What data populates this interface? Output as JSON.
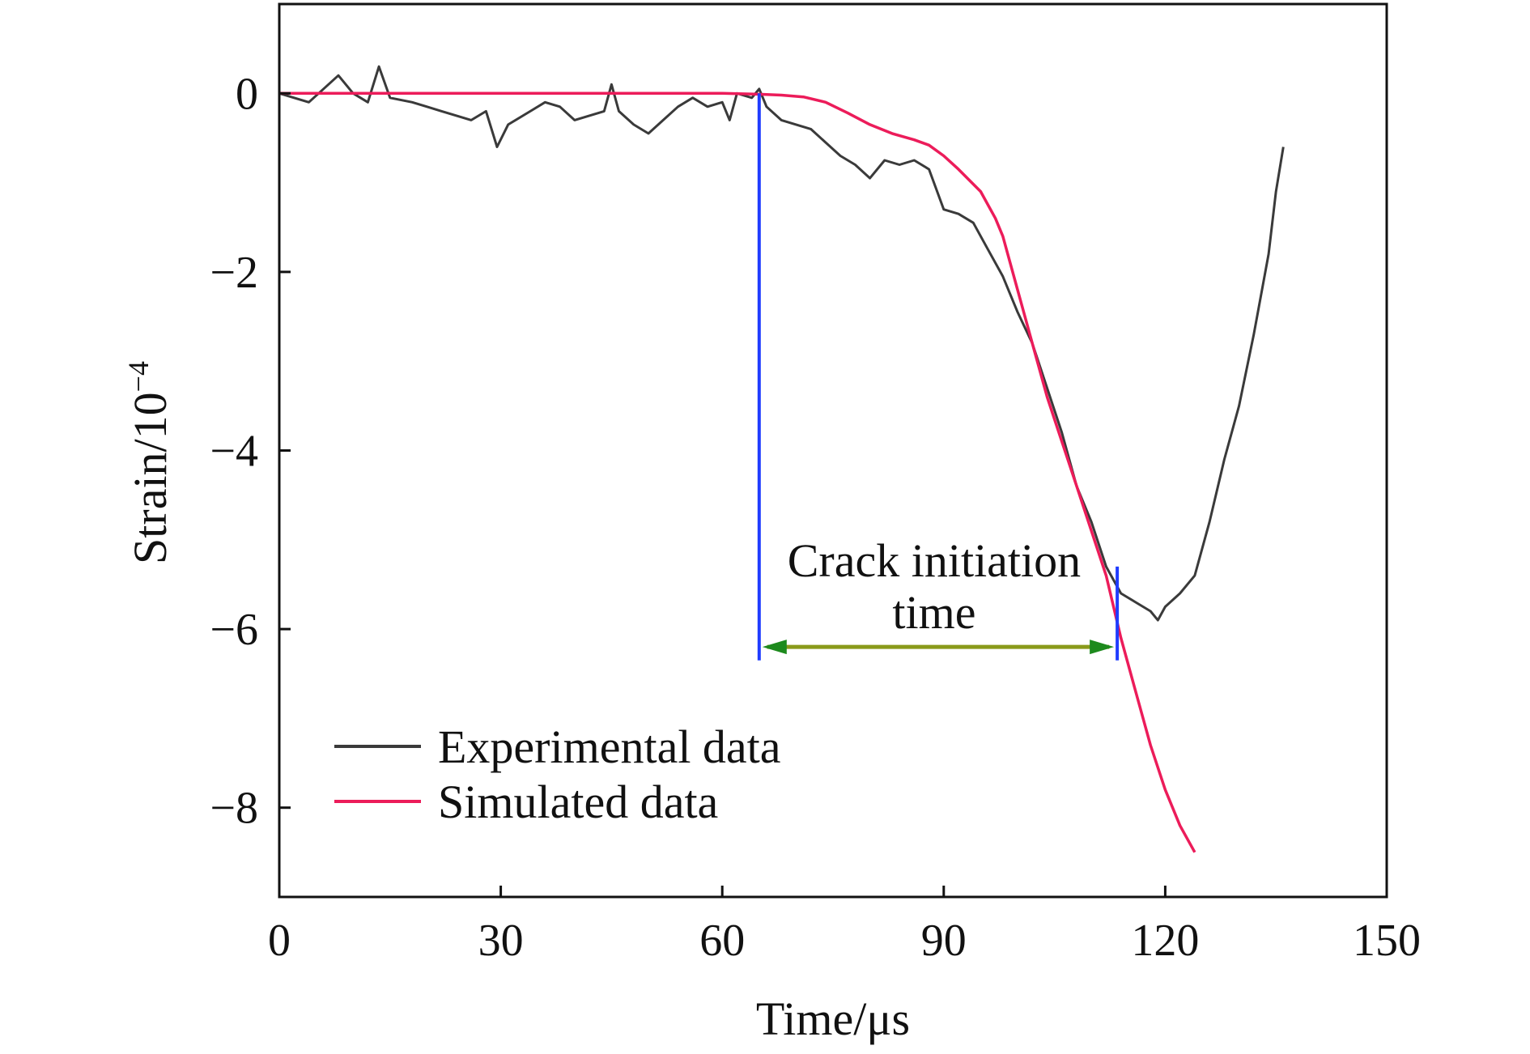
{
  "chart_data": {
    "type": "line",
    "xlabel": "Time/μs",
    "ylabel_base": "Strain/10",
    "ylabel_exp": "−4",
    "xlim": [
      0,
      150
    ],
    "ylim": [
      -9,
      1
    ],
    "x_ticks": [
      0,
      30,
      60,
      90,
      120,
      150
    ],
    "x_tick_labels": [
      "0",
      "30",
      "60",
      "90",
      "120",
      "150"
    ],
    "y_ticks": [
      0,
      -2,
      -4,
      -6,
      -8
    ],
    "y_tick_labels": [
      "0",
      "−2",
      "−4",
      "−6",
      "−8"
    ],
    "grid": false,
    "legend": {
      "placement": "lower-left",
      "entries": [
        "Experimental data",
        "Simulated data"
      ]
    },
    "series": [
      {
        "name": "Experimental data",
        "color": "#3a3a3a",
        "x": [
          0,
          2,
          4,
          6,
          8,
          10,
          12,
          13.5,
          15,
          18,
          20,
          22,
          24,
          26,
          28,
          29.5,
          31,
          34,
          36,
          38,
          40,
          42,
          44,
          45,
          46,
          48,
          50,
          52,
          54,
          56,
          58,
          60,
          61,
          62,
          64,
          65,
          66,
          68,
          70,
          72,
          74,
          76,
          78,
          80,
          82,
          84,
          86,
          88,
          90,
          92,
          94,
          96,
          98,
          100,
          102,
          104,
          106,
          108,
          110,
          112,
          114,
          116,
          118,
          119,
          120,
          122,
          124,
          126,
          128,
          130,
          132,
          134,
          135,
          136
        ],
        "values": [
          0,
          -0.05,
          -0.1,
          0.05,
          0.2,
          0.0,
          -0.1,
          0.3,
          -0.05,
          -0.1,
          -0.15,
          -0.2,
          -0.25,
          -0.3,
          -0.2,
          -0.6,
          -0.35,
          -0.2,
          -0.1,
          -0.15,
          -0.3,
          -0.25,
          -0.2,
          0.1,
          -0.2,
          -0.35,
          -0.45,
          -0.3,
          -0.15,
          -0.05,
          -0.15,
          -0.1,
          -0.3,
          0.0,
          -0.05,
          0.05,
          -0.15,
          -0.3,
          -0.35,
          -0.4,
          -0.55,
          -0.7,
          -0.8,
          -0.95,
          -0.75,
          -0.8,
          -0.75,
          -0.85,
          -1.3,
          -1.35,
          -1.45,
          -1.75,
          -2.05,
          -2.45,
          -2.8,
          -3.3,
          -3.8,
          -4.4,
          -4.8,
          -5.3,
          -5.6,
          -5.7,
          -5.8,
          -5.9,
          -5.75,
          -5.6,
          -5.4,
          -4.8,
          -4.1,
          -3.5,
          -2.7,
          -1.8,
          -1.1,
          -0.6
        ]
      },
      {
        "name": "Simulated data",
        "color": "#ec1c5a",
        "x": [
          0,
          10,
          20,
          30,
          40,
          50,
          60,
          65,
          68,
          71,
          74,
          77,
          80,
          83,
          86,
          88,
          90,
          92,
          95,
          97,
          98,
          100,
          102,
          104,
          106,
          108,
          110,
          112,
          114,
          116,
          118,
          120,
          122,
          124
        ],
        "values": [
          0,
          0,
          0,
          0,
          0,
          0,
          0,
          -0.01,
          -0.02,
          -0.04,
          -0.1,
          -0.22,
          -0.35,
          -0.45,
          -0.52,
          -0.58,
          -0.7,
          -0.85,
          -1.1,
          -1.4,
          -1.6,
          -2.2,
          -2.8,
          -3.4,
          -3.9,
          -4.4,
          -4.9,
          -5.4,
          -6.1,
          -6.7,
          -7.3,
          -7.8,
          -8.2,
          -8.5
        ]
      }
    ],
    "annotation": {
      "lines": [
        "Crack initiation",
        "time"
      ],
      "start_x": 65,
      "end_x": 113.5,
      "vline_top_y": 0,
      "vline_right_top_y": -5.3,
      "vline_bottom_y": -6.35,
      "arrow_y": -6.2,
      "line_color": "#1f3cff",
      "arrow_color": "#8a9a1a",
      "arrowhead_color": "#1d8a1d"
    }
  }
}
